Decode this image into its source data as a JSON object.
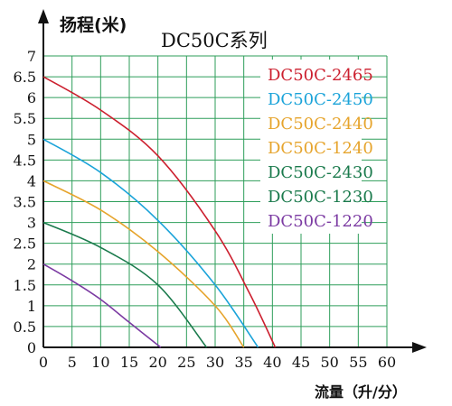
{
  "chart_data": {
    "type": "line",
    "title": "DC50C系列",
    "ylabel": "扬程(米)",
    "xlabel": "流量（升/分）",
    "xlim": [
      0,
      60
    ],
    "ylim": [
      0,
      7
    ],
    "x_ticks": [
      "0",
      "5",
      "10",
      "15",
      "20",
      "25",
      "30",
      "35",
      "40",
      "45",
      "50",
      "55",
      "60"
    ],
    "y_ticks": [
      "0",
      "0.5",
      "1",
      "1.5",
      "2",
      "2.5",
      "3",
      "3.5",
      "4",
      "4.5",
      "5",
      "5.5",
      "6",
      "6.5",
      "7"
    ],
    "grid": true,
    "legend_position": "top-right",
    "series": [
      {
        "name": "DC50C-2465",
        "color": "#cc1f2e",
        "x": [
          0,
          10,
          20,
          30,
          36,
          40.5
        ],
        "y": [
          6.5,
          5.7,
          4.6,
          2.8,
          1.3,
          0
        ]
      },
      {
        "name": "DC50C-2450",
        "color": "#1aa3d9",
        "x": [
          0,
          10,
          20,
          30,
          37.5
        ],
        "y": [
          5.0,
          4.2,
          3.05,
          1.5,
          0
        ]
      },
      {
        "name": "DC50C-2440",
        "color": "#e6a42c",
        "x": [
          0,
          10,
          20,
          30,
          35
        ],
        "y": [
          4.0,
          3.3,
          2.3,
          1.0,
          0
        ]
      },
      {
        "name": "DC50C-1240",
        "color": "#e6a42c",
        "x": [
          0,
          10,
          20,
          30,
          35
        ],
        "y": [
          4.0,
          3.3,
          2.3,
          1.0,
          0
        ]
      },
      {
        "name": "DC50C-2430",
        "color": "#1a7a4c",
        "x": [
          0,
          10,
          20,
          28.5
        ],
        "y": [
          3.0,
          2.4,
          1.5,
          0
        ]
      },
      {
        "name": "DC50C-1230",
        "color": "#1a7a4c",
        "x": [
          0,
          10,
          20,
          28.5
        ],
        "y": [
          3.0,
          2.4,
          1.5,
          0
        ]
      },
      {
        "name": "DC50C-1220",
        "color": "#7b3aa2",
        "x": [
          0,
          5,
          10,
          15,
          20.5
        ],
        "y": [
          2.0,
          1.6,
          1.15,
          0.6,
          0
        ]
      }
    ]
  }
}
